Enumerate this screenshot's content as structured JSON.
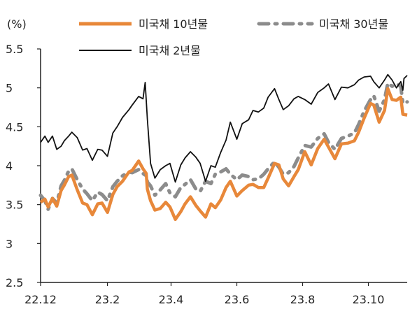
{
  "chart_data": {
    "type": "line",
    "unit_label": "(%)",
    "ylim": [
      2.5,
      5.5
    ],
    "y_ticks": [
      {
        "value": 2.5,
        "label": "2.5"
      },
      {
        "value": 3,
        "label": "3"
      },
      {
        "value": 3.5,
        "label": "3.5"
      },
      {
        "value": 4,
        "label": "4"
      },
      {
        "value": 4.5,
        "label": "4.5"
      },
      {
        "value": 5,
        "label": "5"
      },
      {
        "value": 5.5,
        "label": "5.5"
      }
    ],
    "xlim": [
      "2022-12-01",
      "2023-11-06"
    ],
    "x_ticks": [
      {
        "date": "2022-12-01",
        "label": "22.12"
      },
      {
        "date": "2023-02-01",
        "label": "23.2"
      },
      {
        "date": "2023-04-01",
        "label": "23.4"
      },
      {
        "date": "2023-06-01",
        "label": "23.6"
      },
      {
        "date": "2023-08-01",
        "label": "23.8"
      },
      {
        "date": "2023-10-01",
        "label": "23.10"
      }
    ],
    "legend": [
      "미국채 10년물",
      "미국채 30년물",
      "미국채 2년물"
    ],
    "series": [
      {
        "name": "미국채 10년물",
        "color": "#E8883A",
        "style": "solid",
        "points": [
          [
            "2022-12-01",
            3.53
          ],
          [
            "2022-12-05",
            3.57
          ],
          [
            "2022-12-08",
            3.47
          ],
          [
            "2022-12-12",
            3.58
          ],
          [
            "2022-12-16",
            3.48
          ],
          [
            "2022-12-20",
            3.68
          ],
          [
            "2022-12-23",
            3.75
          ],
          [
            "2022-12-27",
            3.86
          ],
          [
            "2022-12-30",
            3.88
          ],
          [
            "2023-01-04",
            3.69
          ],
          [
            "2023-01-09",
            3.52
          ],
          [
            "2023-01-13",
            3.5
          ],
          [
            "2023-01-18",
            3.37
          ],
          [
            "2023-01-23",
            3.51
          ],
          [
            "2023-01-27",
            3.52
          ],
          [
            "2023-02-01",
            3.4
          ],
          [
            "2023-02-06",
            3.63
          ],
          [
            "2023-02-10",
            3.73
          ],
          [
            "2023-02-15",
            3.8
          ],
          [
            "2023-02-21",
            3.92
          ],
          [
            "2023-02-24",
            3.94
          ],
          [
            "2023-03-02",
            4.06
          ],
          [
            "2023-03-06",
            3.96
          ],
          [
            "2023-03-09",
            3.9
          ],
          [
            "2023-03-10",
            3.7
          ],
          [
            "2023-03-13",
            3.55
          ],
          [
            "2023-03-17",
            3.43
          ],
          [
            "2023-03-22",
            3.45
          ],
          [
            "2023-03-27",
            3.53
          ],
          [
            "2023-03-31",
            3.47
          ],
          [
            "2023-04-05",
            3.31
          ],
          [
            "2023-04-10",
            3.41
          ],
          [
            "2023-04-14",
            3.51
          ],
          [
            "2023-04-19",
            3.6
          ],
          [
            "2023-04-24",
            3.49
          ],
          [
            "2023-04-28",
            3.42
          ],
          [
            "2023-05-03",
            3.34
          ],
          [
            "2023-05-08",
            3.51
          ],
          [
            "2023-05-12",
            3.46
          ],
          [
            "2023-05-17",
            3.56
          ],
          [
            "2023-05-22",
            3.72
          ],
          [
            "2023-05-26",
            3.8
          ],
          [
            "2023-06-01",
            3.61
          ],
          [
            "2023-06-06",
            3.68
          ],
          [
            "2023-06-12",
            3.75
          ],
          [
            "2023-06-16",
            3.76
          ],
          [
            "2023-06-21",
            3.72
          ],
          [
            "2023-06-26",
            3.72
          ],
          [
            "2023-06-30",
            3.84
          ],
          [
            "2023-07-06",
            4.03
          ],
          [
            "2023-07-10",
            4.01
          ],
          [
            "2023-07-14",
            3.83
          ],
          [
            "2023-07-19",
            3.74
          ],
          [
            "2023-07-24",
            3.86
          ],
          [
            "2023-07-28",
            3.95
          ],
          [
            "2023-08-03",
            4.18
          ],
          [
            "2023-08-09",
            4.01
          ],
          [
            "2023-08-15",
            4.22
          ],
          [
            "2023-08-21",
            4.34
          ],
          [
            "2023-08-25",
            4.24
          ],
          [
            "2023-08-31",
            4.09
          ],
          [
            "2023-09-06",
            4.28
          ],
          [
            "2023-09-12",
            4.29
          ],
          [
            "2023-09-18",
            4.32
          ],
          [
            "2023-09-22",
            4.43
          ],
          [
            "2023-09-27",
            4.61
          ],
          [
            "2023-10-03",
            4.8
          ],
          [
            "2023-10-06",
            4.78
          ],
          [
            "2023-10-11",
            4.56
          ],
          [
            "2023-10-16",
            4.71
          ],
          [
            "2023-10-19",
            4.99
          ],
          [
            "2023-10-23",
            4.85
          ],
          [
            "2023-10-27",
            4.84
          ],
          [
            "2023-10-31",
            4.88
          ],
          [
            "2023-11-02",
            4.66
          ],
          [
            "2023-11-06",
            4.65
          ]
        ]
      },
      {
        "name": "미국채 30년물",
        "color": "#8C8C8C",
        "style": "dash-dot",
        "points": [
          [
            "2022-12-01",
            3.62
          ],
          [
            "2022-12-05",
            3.55
          ],
          [
            "2022-12-08",
            3.44
          ],
          [
            "2022-12-12",
            3.58
          ],
          [
            "2022-12-16",
            3.52
          ],
          [
            "2022-12-20",
            3.74
          ],
          [
            "2022-12-23",
            3.81
          ],
          [
            "2022-12-27",
            3.93
          ],
          [
            "2022-12-30",
            3.96
          ],
          [
            "2023-01-04",
            3.82
          ],
          [
            "2023-01-09",
            3.7
          ],
          [
            "2023-01-13",
            3.64
          ],
          [
            "2023-01-18",
            3.55
          ],
          [
            "2023-01-23",
            3.66
          ],
          [
            "2023-01-27",
            3.63
          ],
          [
            "2023-02-01",
            3.55
          ],
          [
            "2023-02-06",
            3.73
          ],
          [
            "2023-02-10",
            3.8
          ],
          [
            "2023-02-15",
            3.87
          ],
          [
            "2023-02-21",
            3.92
          ],
          [
            "2023-02-24",
            3.91
          ],
          [
            "2023-03-02",
            3.95
          ],
          [
            "2023-03-06",
            3.9
          ],
          [
            "2023-03-09",
            3.87
          ],
          [
            "2023-03-10",
            3.79
          ],
          [
            "2023-03-13",
            3.74
          ],
          [
            "2023-03-17",
            3.62
          ],
          [
            "2023-03-22",
            3.69
          ],
          [
            "2023-03-27",
            3.77
          ],
          [
            "2023-03-31",
            3.65
          ],
          [
            "2023-04-05",
            3.6
          ],
          [
            "2023-04-10",
            3.72
          ],
          [
            "2023-04-14",
            3.76
          ],
          [
            "2023-04-19",
            3.82
          ],
          [
            "2023-04-24",
            3.7
          ],
          [
            "2023-04-28",
            3.67
          ],
          [
            "2023-05-03",
            3.8
          ],
          [
            "2023-05-08",
            3.77
          ],
          [
            "2023-05-12",
            3.89
          ],
          [
            "2023-05-17",
            3.92
          ],
          [
            "2023-05-22",
            3.96
          ],
          [
            "2023-05-26",
            3.89
          ],
          [
            "2023-06-01",
            3.82
          ],
          [
            "2023-06-06",
            3.88
          ],
          [
            "2023-06-12",
            3.86
          ],
          [
            "2023-06-16",
            3.82
          ],
          [
            "2023-06-21",
            3.83
          ],
          [
            "2023-06-26",
            3.89
          ],
          [
            "2023-06-30",
            3.96
          ],
          [
            "2023-07-06",
            4.05
          ],
          [
            "2023-07-10",
            3.98
          ],
          [
            "2023-07-14",
            3.89
          ],
          [
            "2023-07-19",
            3.91
          ],
          [
            "2023-07-24",
            3.99
          ],
          [
            "2023-07-28",
            4.1
          ],
          [
            "2023-08-03",
            4.26
          ],
          [
            "2023-08-09",
            4.24
          ],
          [
            "2023-08-15",
            4.35
          ],
          [
            "2023-08-21",
            4.41
          ],
          [
            "2023-08-25",
            4.3
          ],
          [
            "2023-08-31",
            4.21
          ],
          [
            "2023-09-06",
            4.35
          ],
          [
            "2023-09-12",
            4.38
          ],
          [
            "2023-09-18",
            4.42
          ],
          [
            "2023-09-22",
            4.53
          ],
          [
            "2023-09-27",
            4.7
          ],
          [
            "2023-10-03",
            4.85
          ],
          [
            "2023-10-06",
            4.9
          ],
          [
            "2023-10-11",
            4.7
          ],
          [
            "2023-10-16",
            4.85
          ],
          [
            "2023-10-19",
            5.06
          ],
          [
            "2023-10-23",
            5.02
          ],
          [
            "2023-10-27",
            5.05
          ],
          [
            "2023-10-31",
            5.02
          ],
          [
            "2023-11-02",
            4.8
          ],
          [
            "2023-11-06",
            4.82
          ]
        ]
      },
      {
        "name": "미국채 2년물",
        "color": "#111111",
        "style": "solid",
        "points": [
          [
            "2022-12-01",
            4.3
          ],
          [
            "2022-12-05",
            4.38
          ],
          [
            "2022-12-08",
            4.3
          ],
          [
            "2022-12-12",
            4.38
          ],
          [
            "2022-12-16",
            4.21
          ],
          [
            "2022-12-20",
            4.25
          ],
          [
            "2022-12-23",
            4.32
          ],
          [
            "2022-12-27",
            4.38
          ],
          [
            "2022-12-30",
            4.43
          ],
          [
            "2023-01-04",
            4.36
          ],
          [
            "2023-01-09",
            4.2
          ],
          [
            "2023-01-13",
            4.22
          ],
          [
            "2023-01-18",
            4.07
          ],
          [
            "2023-01-23",
            4.21
          ],
          [
            "2023-01-27",
            4.2
          ],
          [
            "2023-02-01",
            4.12
          ],
          [
            "2023-02-06",
            4.42
          ],
          [
            "2023-02-10",
            4.5
          ],
          [
            "2023-02-15",
            4.62
          ],
          [
            "2023-02-21",
            4.72
          ],
          [
            "2023-02-24",
            4.78
          ],
          [
            "2023-03-02",
            4.89
          ],
          [
            "2023-03-06",
            4.86
          ],
          [
            "2023-03-08",
            5.07
          ],
          [
            "2023-03-10",
            4.6
          ],
          [
            "2023-03-13",
            4.03
          ],
          [
            "2023-03-17",
            3.84
          ],
          [
            "2023-03-22",
            3.95
          ],
          [
            "2023-03-27",
            4.0
          ],
          [
            "2023-03-31",
            4.03
          ],
          [
            "2023-04-05",
            3.79
          ],
          [
            "2023-04-10",
            4.01
          ],
          [
            "2023-04-14",
            4.1
          ],
          [
            "2023-04-19",
            4.18
          ],
          [
            "2023-04-24",
            4.11
          ],
          [
            "2023-04-28",
            4.03
          ],
          [
            "2023-05-03",
            3.8
          ],
          [
            "2023-05-08",
            4.0
          ],
          [
            "2023-05-12",
            3.98
          ],
          [
            "2023-05-17",
            4.17
          ],
          [
            "2023-05-22",
            4.33
          ],
          [
            "2023-05-26",
            4.56
          ],
          [
            "2023-06-01",
            4.34
          ],
          [
            "2023-06-06",
            4.54
          ],
          [
            "2023-06-12",
            4.59
          ],
          [
            "2023-06-16",
            4.71
          ],
          [
            "2023-06-21",
            4.69
          ],
          [
            "2023-06-26",
            4.74
          ],
          [
            "2023-06-30",
            4.88
          ],
          [
            "2023-07-06",
            4.99
          ],
          [
            "2023-07-10",
            4.85
          ],
          [
            "2023-07-14",
            4.72
          ],
          [
            "2023-07-19",
            4.77
          ],
          [
            "2023-07-24",
            4.86
          ],
          [
            "2023-07-28",
            4.89
          ],
          [
            "2023-08-03",
            4.85
          ],
          [
            "2023-08-09",
            4.79
          ],
          [
            "2023-08-15",
            4.94
          ],
          [
            "2023-08-21",
            5.0
          ],
          [
            "2023-08-25",
            5.05
          ],
          [
            "2023-08-31",
            4.85
          ],
          [
            "2023-09-06",
            5.01
          ],
          [
            "2023-09-12",
            5.0
          ],
          [
            "2023-09-18",
            5.04
          ],
          [
            "2023-09-22",
            5.1
          ],
          [
            "2023-09-27",
            5.14
          ],
          [
            "2023-10-03",
            5.15
          ],
          [
            "2023-10-06",
            5.08
          ],
          [
            "2023-10-11",
            5.0
          ],
          [
            "2023-10-16",
            5.1
          ],
          [
            "2023-10-19",
            5.17
          ],
          [
            "2023-10-23",
            5.1
          ],
          [
            "2023-10-27",
            5.0
          ],
          [
            "2023-10-31",
            5.08
          ],
          [
            "2023-11-02",
            4.97
          ],
          [
            "2023-11-03",
            5.12
          ],
          [
            "2023-11-06",
            5.16
          ]
        ]
      }
    ]
  }
}
